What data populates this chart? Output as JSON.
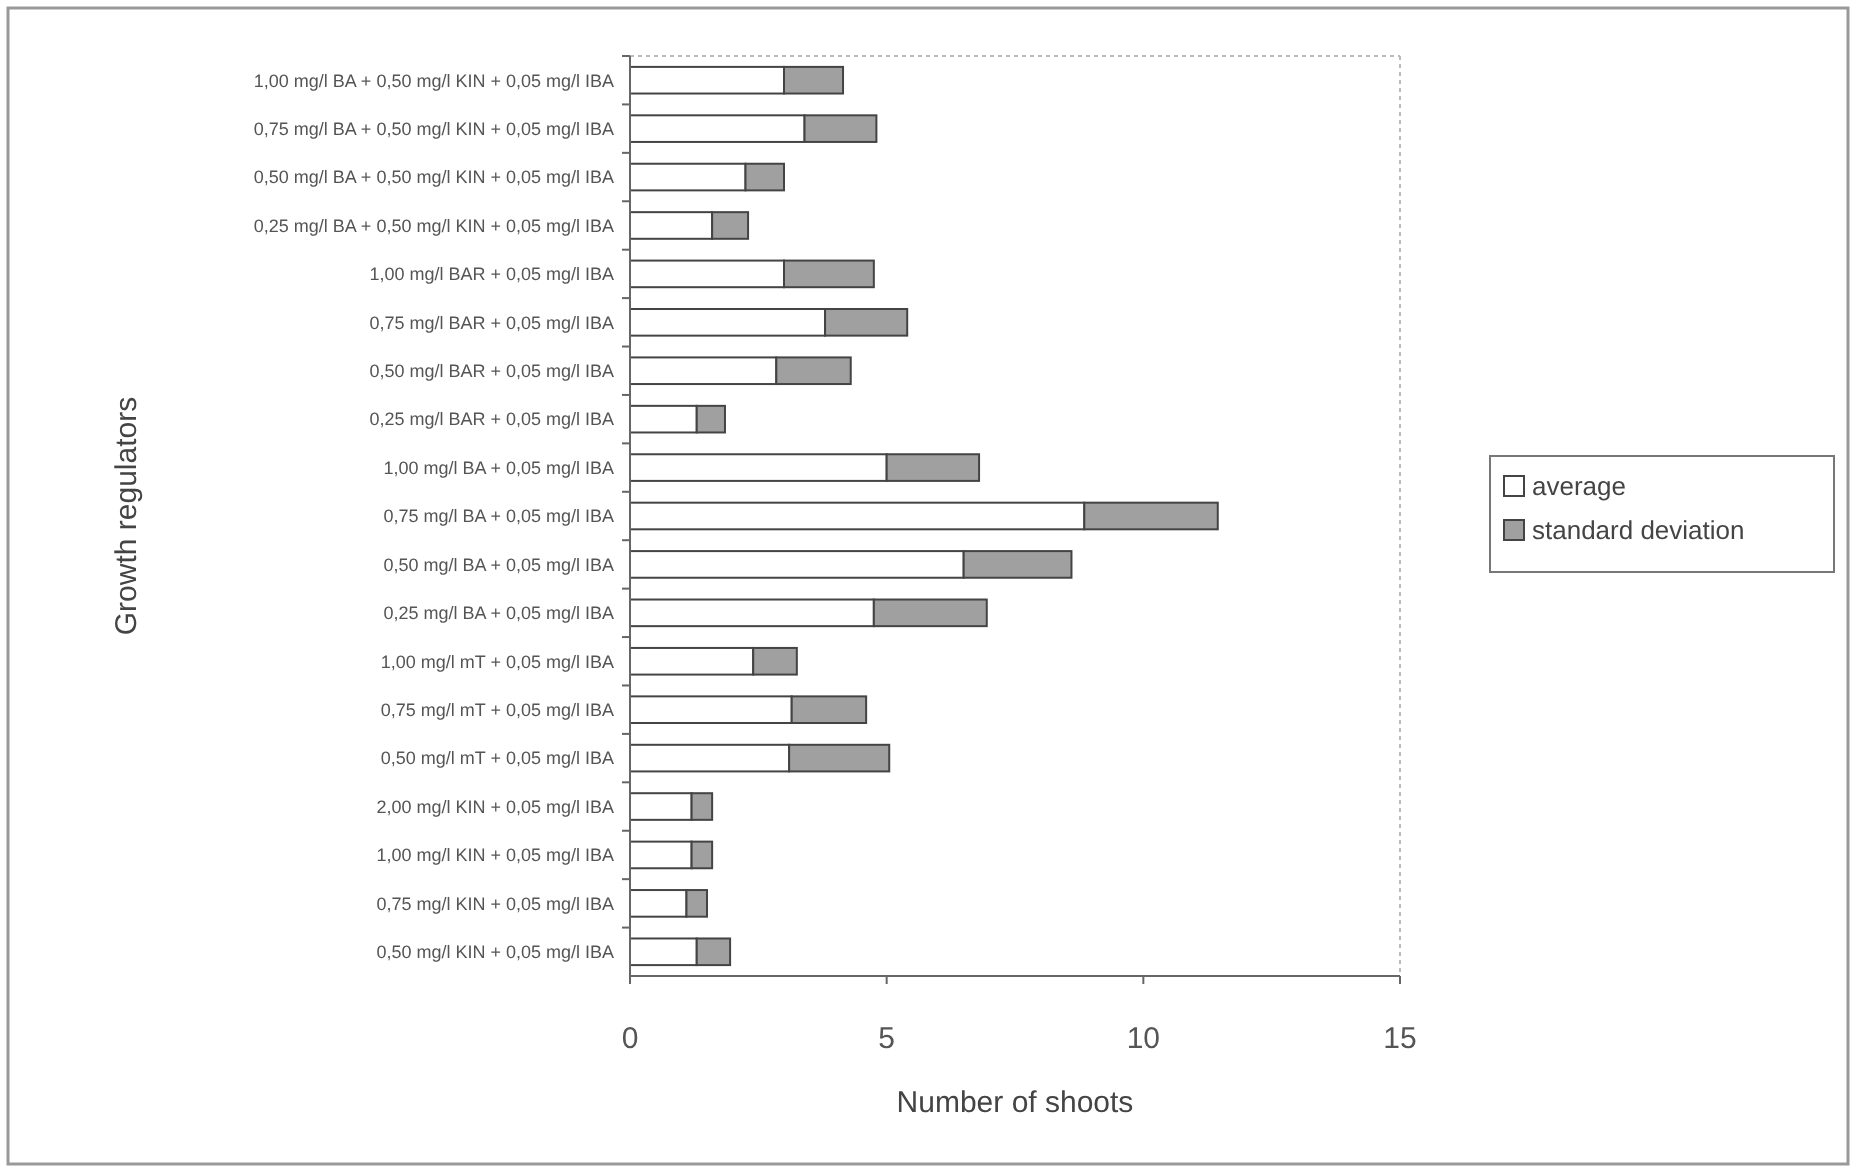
{
  "chart_data": {
    "type": "bar",
    "orientation": "horizontal",
    "stacked": true,
    "xlabel": "Number of shoots",
    "ylabel": "Growth regulators",
    "categories": [
      "1,00 mg/l BA + 0,50 mg/l KIN + 0,05 mg/l IBA",
      "0,75 mg/l BA + 0,50 mg/l KIN + 0,05 mg/l IBA",
      "0,50 mg/l BA + 0,50 mg/l KIN + 0,05 mg/l IBA",
      "0,25 mg/l BA + 0,50 mg/l KIN + 0,05 mg/l IBA",
      "1,00 mg/l BAR + 0,05 mg/l IBA",
      "0,75 mg/l BAR + 0,05 mg/l IBA",
      "0,50 mg/l BAR + 0,05 mg/l IBA",
      "0,25 mg/l BAR + 0,05 mg/l IBA",
      "1,00 mg/l BA + 0,05 mg/l IBA",
      "0,75 mg/l BA + 0,05 mg/l IBA",
      "0,50 mg/l BA + 0,05 mg/l IBA",
      "0,25 mg/l BA + 0,05 mg/l IBA",
      "1,00 mg/l mT + 0,05 mg/l IBA",
      "0,75 mg/l mT + 0,05 mg/l IBA",
      "0,50 mg/l mT + 0,05 mg/l IBA",
      "2,00 mg/l KIN + 0,05 mg/l IBA",
      "1,00 mg/l KIN + 0,05 mg/l IBA",
      "0,75 mg/l KIN + 0,05 mg/l IBA",
      "0,50 mg/l KIN + 0,05 mg/l IBA"
    ],
    "series": [
      {
        "name": "average",
        "color": "#ffffff",
        "values": [
          3.0,
          3.4,
          2.25,
          1.6,
          3.0,
          3.8,
          2.85,
          1.3,
          5.0,
          8.85,
          6.5,
          4.75,
          2.4,
          3.15,
          3.1,
          1.2,
          1.2,
          1.1,
          1.3
        ]
      },
      {
        "name": "standard deviation",
        "color": "#a0a0a0",
        "values": [
          1.15,
          1.4,
          0.75,
          0.7,
          1.75,
          1.6,
          1.45,
          0.55,
          1.8,
          2.6,
          2.1,
          2.2,
          0.85,
          1.45,
          1.95,
          0.4,
          0.4,
          0.4,
          0.65
        ]
      }
    ],
    "xlim": [
      0,
      15
    ],
    "xticks": [
      0,
      5,
      10,
      15
    ],
    "grid": false,
    "legend": "right"
  }
}
